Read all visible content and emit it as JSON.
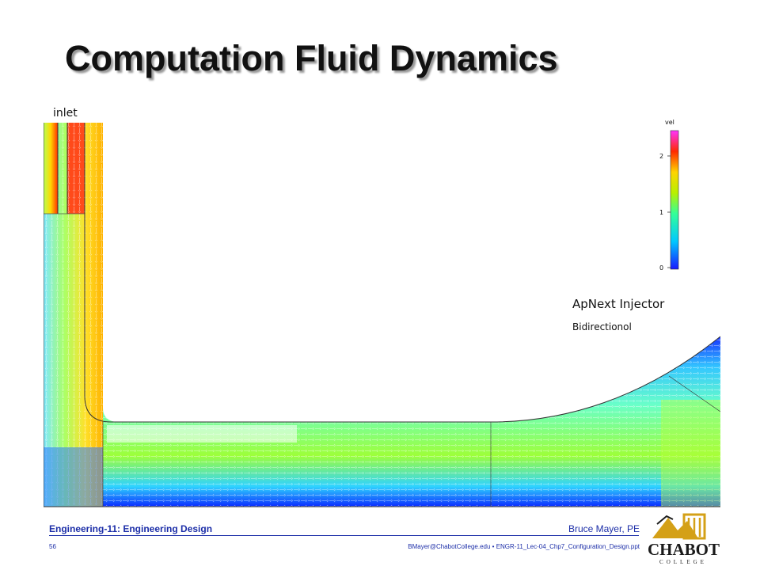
{
  "slide": {
    "title": "Computation Fluid Dynamics",
    "figure": {
      "inlet_label": "inlet",
      "colorbar": {
        "label": "vel",
        "ticks": [
          "2",
          "1",
          "0"
        ]
      },
      "caption_line1": "ApNext Injector",
      "caption_line2": "Bidirectionol"
    },
    "footer": {
      "course": "Engineering-11: Engineering Design",
      "author": "Bruce Mayer, PE",
      "page": "56",
      "file": "BMayer@ChabotCollege.edu  •  ENGR-11_Lec-04_Chp7_Configuration_Design.ppt"
    },
    "logo": {
      "name": "CHABOT",
      "sub": "COLLEGE"
    }
  },
  "colors": {
    "title": "#111111",
    "footer_text": "#1c2ea8",
    "logo_gold": "#d4a017"
  }
}
